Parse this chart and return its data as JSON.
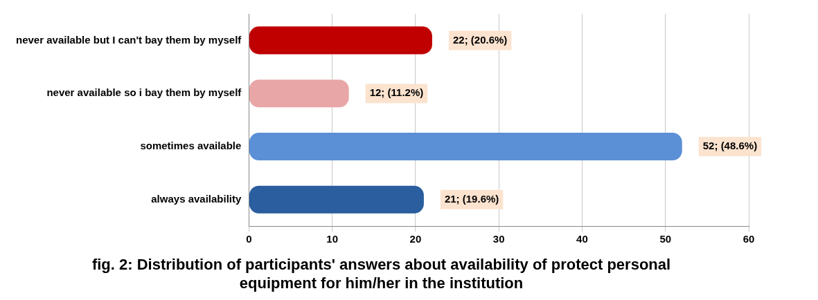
{
  "chart_data": {
    "type": "bar",
    "orientation": "horizontal",
    "title": "fig. 2: Distribution of participants' answers about availability of protect personal equipment for him/her in the institution",
    "categories": [
      "never available but I can't bay them by myself",
      "never available so i bay them by myself",
      "sometimes available",
      "always availability"
    ],
    "values": [
      22,
      12,
      52,
      21
    ],
    "colors": [
      "#c00000",
      "#e8a6a6",
      "#5b8fd6",
      "#2a5e9e"
    ],
    "value_labels": [
      "22; (20.6%)",
      "12; (11.2%)",
      "52; (48.6%)",
      "21; (19.6%)"
    ],
    "xlim": [
      0,
      60
    ],
    "xticks": [
      0,
      10,
      20,
      30,
      40,
      50,
      60
    ],
    "grid": "x",
    "legend": false
  }
}
